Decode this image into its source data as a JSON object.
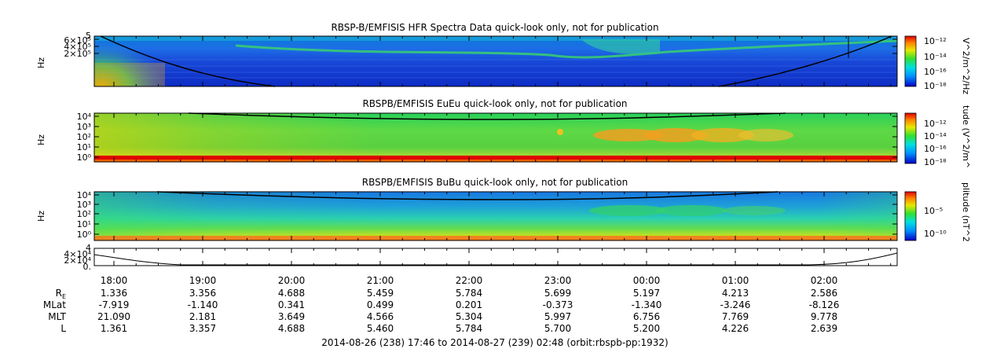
{
  "chart_data": [
    {
      "type": "heatmap",
      "title": "RBSP-B/EMFISIS  HFR Spectra Data quick-look only, not for publication",
      "ylabel": "Hz",
      "yticks": [
        "2×10⁵",
        "4×10⁵",
        "6×10⁵"
      ],
      "ytop_label": "5",
      "colorbar_label": "V^2/m^2/Hz",
      "colorbar_ticks": [
        "10⁻¹²",
        "10⁻¹⁴",
        "10⁻¹⁶",
        "10⁻¹⁸"
      ]
    },
    {
      "type": "heatmap",
      "title": "RBSPB/EMFISIS  EuEu quick-look only, not for publication",
      "ylabel": "Hz",
      "yticks": [
        "10⁴",
        "10³",
        "10²",
        "10¹",
        "10⁰"
      ],
      "colorbar_label": "tude (V^2/m^",
      "colorbar_ticks": [
        "10⁻¹²",
        "10⁻¹⁴",
        "10⁻¹⁶",
        "10⁻¹⁸"
      ]
    },
    {
      "type": "heatmap",
      "title": "RBSPB/EMFISIS  BuBu quick-look only, not for publication",
      "ylabel": "Hz",
      "yticks": [
        "10⁴",
        "10³",
        "10²",
        "10¹",
        "10⁰"
      ],
      "colorbar_label": "plitude (nT^2",
      "colorbar_ticks": [
        "10⁻⁵",
        "10⁻¹⁰"
      ]
    },
    {
      "type": "line",
      "yticks": [
        "4×10⁴",
        "2×10⁴",
        "0."
      ],
      "ytop_label": "4"
    }
  ],
  "time_axis": {
    "ticks": [
      "18:00",
      "19:00",
      "20:00",
      "21:00",
      "22:00",
      "23:00",
      "00:00",
      "01:00",
      "02:00"
    ]
  },
  "ephemeris": [
    {
      "label": "R",
      "sub": "E",
      "values": [
        "1.336",
        "3.356",
        "4.688",
        "5.459",
        "5.784",
        "5.699",
        "5.197",
        "4.213",
        "2.586"
      ]
    },
    {
      "label": "MLat",
      "sub": "",
      "values": [
        "-7.919",
        "-1.140",
        "0.341",
        "0.499",
        "0.201",
        "-0.373",
        "-1.340",
        "-3.246",
        "-8.126"
      ]
    },
    {
      "label": "MLT",
      "sub": "",
      "values": [
        "21.090",
        "2.181",
        "3.649",
        "4.566",
        "5.304",
        "5.997",
        "6.756",
        "7.769",
        "9.778"
      ]
    },
    {
      "label": "L",
      "sub": "",
      "values": [
        "1.361",
        "3.357",
        "4.688",
        "5.460",
        "5.784",
        "5.700",
        "5.200",
        "4.226",
        "2.639"
      ]
    }
  ],
  "footer": "2014-08-26 (238) 17:46 to 2014-08-27 (239) 02:48 (orbit:rbspb-pp:1932)"
}
